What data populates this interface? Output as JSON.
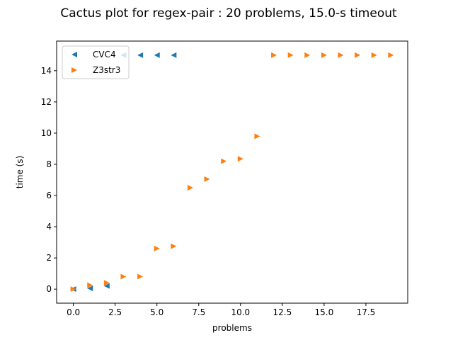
{
  "chart_data": {
    "type": "scatter",
    "title": "Cactus plot for regex-pair : 20 problems, 15.0-s timeout",
    "xlabel": "problems",
    "ylabel": "time (s)",
    "xlim": [
      -1.0,
      20.0
    ],
    "ylim": [
      -0.9,
      15.9
    ],
    "xticks": [
      0.0,
      2.5,
      5.0,
      7.5,
      10.0,
      12.5,
      15.0,
      17.5
    ],
    "xtick_labels": [
      "0.0",
      "2.5",
      "5.0",
      "7.5",
      "10.0",
      "12.5",
      "15.0",
      "17.5"
    ],
    "yticks": [
      0,
      2,
      4,
      6,
      8,
      10,
      12,
      14
    ],
    "ytick_labels": [
      "0",
      "2",
      "4",
      "6",
      "8",
      "10",
      "12",
      "14"
    ],
    "grid": false,
    "legend_position": "top-left",
    "series": [
      {
        "name": "CVC4",
        "marker": "triangle-left",
        "color": "#1f77b4",
        "x": [
          0,
          1,
          2,
          3,
          4,
          5,
          6
        ],
        "y": [
          0.0,
          0.05,
          0.2,
          15.0,
          15.0,
          15.0,
          15.0
        ]
      },
      {
        "name": "Z3str3",
        "marker": "triangle-right",
        "color": "#ff7f0e",
        "x": [
          0,
          1,
          2,
          3,
          4,
          5,
          6,
          7,
          8,
          9,
          10,
          11,
          12,
          13,
          14,
          15,
          16,
          17,
          18,
          19
        ],
        "y": [
          0.0,
          0.25,
          0.4,
          0.8,
          0.8,
          2.6,
          2.75,
          6.5,
          7.05,
          8.2,
          8.35,
          9.8,
          15.0,
          15.0,
          15.0,
          15.0,
          15.0,
          15.0,
          15.0,
          15.0
        ]
      }
    ]
  }
}
